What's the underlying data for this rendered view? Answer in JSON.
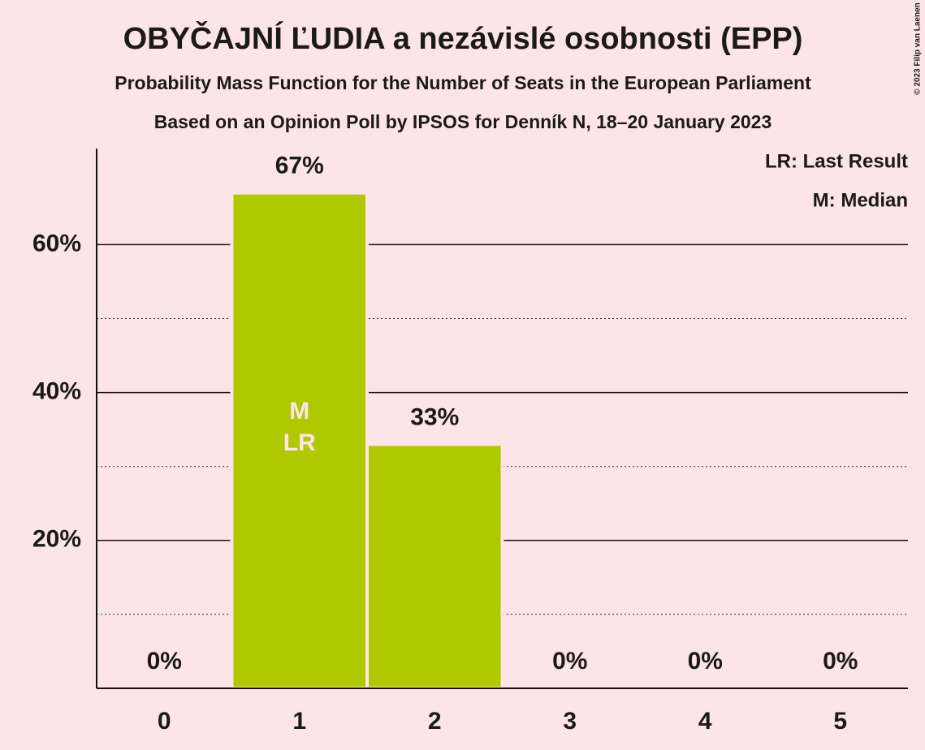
{
  "chart_data": {
    "type": "bar",
    "title": "OBYČAJNÍ ĽUDIA a nezávislé osobnosti (EPP)",
    "subtitle": "Probability Mass Function for the Number of Seats in the European Parliament",
    "subtitle2": "Based on an Opinion Poll by IPSOS for Denník N, 18–20 January 2023",
    "copyright": "© 2023 Filip van Laenen",
    "categories": [
      "0",
      "1",
      "2",
      "3",
      "4",
      "5"
    ],
    "values": [
      0,
      67,
      33,
      0,
      0,
      0
    ],
    "value_labels": [
      "0%",
      "67%",
      "33%",
      "0%",
      "0%",
      "0%"
    ],
    "color": "#b0c800",
    "ylim": [
      0,
      73
    ],
    "yticks": [
      {
        "value": 20,
        "label": "20%"
      },
      {
        "value": 40,
        "label": "40%"
      },
      {
        "value": 60,
        "label": "60%"
      }
    ],
    "minor_yticks": [
      10,
      30,
      50
    ],
    "grid": true,
    "markers": [
      {
        "label": "M",
        "at": "1"
      },
      {
        "label": "LR",
        "at": "1"
      }
    ],
    "legend": [
      "LR: Last Result",
      "M: Median"
    ],
    "legend_position": "top-right"
  }
}
